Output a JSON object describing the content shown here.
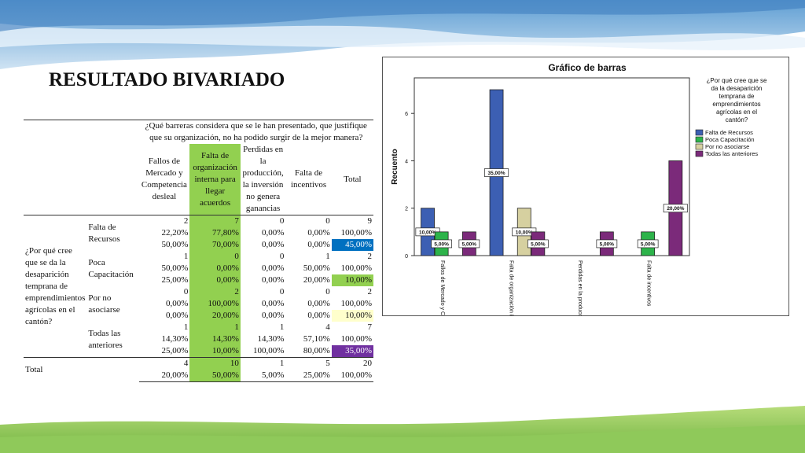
{
  "slide": {
    "title": "RESULTADO BIVARIADO"
  },
  "table": {
    "column_question": "¿Qué barreras considera que se le han presentado, que justifique que su organización, no ha podido surgir de la mejor manera?",
    "columns": [
      "Fallos de Mercado y Competencia desleal",
      "Falta de organización interna para llegar acuerdos",
      "Perdidas en la producción, la inversión no genera ganancias",
      "Falta de incentivos",
      "Total"
    ],
    "row_question": "¿Por qué cree que se da la desaparición temprana de emprendimientos agrícolas en el cantón?",
    "rows": [
      {
        "label": "Falta de Recursos",
        "counts": [
          "2",
          "7",
          "0",
          "0",
          "9"
        ],
        "row_pct": [
          "22,20%",
          "77,80%",
          "0,00%",
          "0,00%",
          "100,00%"
        ],
        "col_pct": [
          "50,00%",
          "70,00%",
          "0,00%",
          "0,00%",
          "45,00%"
        ]
      },
      {
        "label": "Poca Capacitación",
        "counts": [
          "1",
          "0",
          "0",
          "1",
          "2"
        ],
        "row_pct": [
          "50,00%",
          "0,00%",
          "0,00%",
          "50,00%",
          "100,00%"
        ],
        "col_pct": [
          "25,00%",
          "0,00%",
          "0,00%",
          "20,00%",
          "10,00%"
        ]
      },
      {
        "label": "Por no asociarse",
        "counts": [
          "0",
          "2",
          "0",
          "0",
          "2"
        ],
        "row_pct": [
          "0,00%",
          "100,00%",
          "0,00%",
          "0,00%",
          "100,00%"
        ],
        "col_pct": [
          "0,00%",
          "20,00%",
          "0,00%",
          "0,00%",
          "10,00%"
        ]
      },
      {
        "label": "Todas las anteriores",
        "counts": [
          "1",
          "1",
          "1",
          "4",
          "7"
        ],
        "row_pct": [
          "14,30%",
          "14,30%",
          "14,30%",
          "57,10%",
          "100,00%"
        ],
        "col_pct": [
          "25,00%",
          "10,00%",
          "100,00%",
          "80,00%",
          "35,00%"
        ]
      }
    ],
    "total": {
      "label": "Total",
      "counts": [
        "4",
        "10",
        "1",
        "5",
        "20"
      ],
      "pct": [
        "20,00%",
        "50,00%",
        "5,00%",
        "25,00%",
        "100,00%"
      ]
    }
  },
  "chart_data": {
    "type": "bar",
    "title": "Gráfico de barras",
    "ylabel": "Recuento",
    "ylim": [
      0,
      7.5
    ],
    "yticks": [
      "0",
      "2",
      "4",
      "6"
    ],
    "categories": [
      "Fallos de Mercado y Competencia desleal",
      "Falta de organización interna para llegar acuerdos",
      "Perdidas en la producción, la inversión no genera ganancias",
      "Falta de incentivos"
    ],
    "series": [
      {
        "name": "Falta de Recursos",
        "color": "#3c5fb3",
        "values": [
          2,
          7,
          0,
          0
        ],
        "labels": [
          "10,00%",
          "35,00%",
          "",
          ""
        ]
      },
      {
        "name": "Poca Capacitación",
        "color": "#2db34a",
        "values": [
          1,
          0,
          0,
          1
        ],
        "labels": [
          "5,00%",
          "",
          "",
          "5,00%"
        ]
      },
      {
        "name": "Por no asociarse",
        "color": "#d6d0a0",
        "values": [
          0,
          2,
          0,
          0
        ],
        "labels": [
          "",
          "10,00%",
          "",
          ""
        ]
      },
      {
        "name": "Todas las anteriores",
        "color": "#7b2a7a",
        "values": [
          1,
          1,
          1,
          4
        ],
        "labels": [
          "5,00%",
          "5,00%",
          "5,00%",
          "20,00%"
        ]
      }
    ],
    "legend_title": "¿Por qué cree que se da la desaparición temprana de emprendimientos agrícolas en el cantón?",
    "legend_position": "right",
    "grid": false
  }
}
